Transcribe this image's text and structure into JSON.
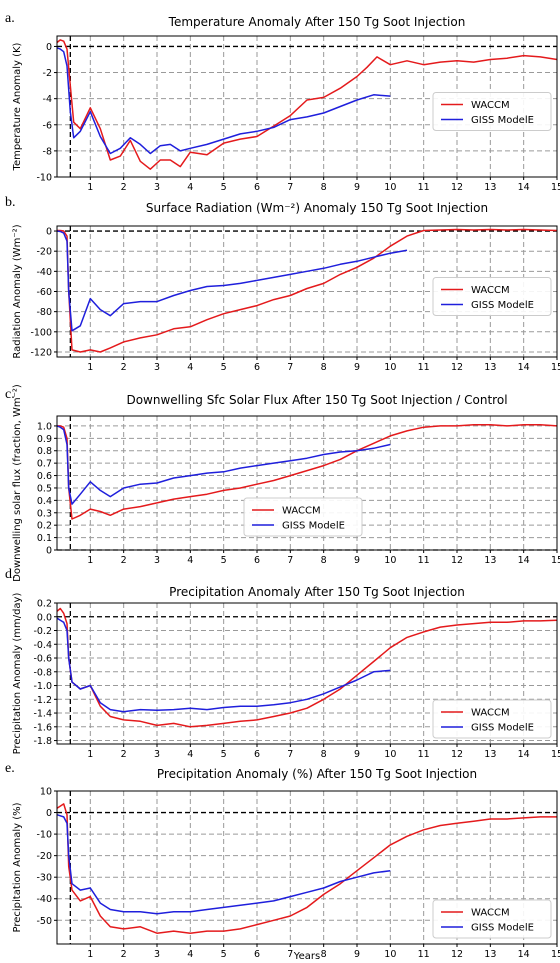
{
  "figure": {
    "xlabel": "Years",
    "x_ticks": [
      1,
      2,
      3,
      4,
      5,
      6,
      7,
      8,
      9,
      10,
      11,
      12,
      13,
      14,
      15
    ]
  },
  "chart_data": [
    {
      "type": "line",
      "panel_label": "a.",
      "title": "Temperature Anomaly After 150 Tg Soot Injection",
      "ylabel": "Temperature Anomaly (K)",
      "xlim": [
        0,
        15
      ],
      "ylim": [
        -10,
        0.8
      ],
      "yticks": [
        0,
        -2,
        -4,
        -6,
        -8,
        -10
      ],
      "ytick_labels": [
        "0",
        "-2",
        "-4",
        "-6",
        "-8",
        "-10"
      ],
      "legend": "center-right",
      "grid": true,
      "series": [
        {
          "name": "WACCM",
          "color": "#e41a1c",
          "x": [
            0,
            0.1,
            0.2,
            0.3,
            0.4,
            0.5,
            0.7,
            1.0,
            1.3,
            1.6,
            1.9,
            2.2,
            2.5,
            2.8,
            3.1,
            3.4,
            3.7,
            4,
            4.5,
            5,
            5.5,
            6,
            6.5,
            7,
            7.5,
            8,
            8.5,
            9,
            9.3,
            9.6,
            10,
            10.5,
            11,
            11.5,
            12,
            12.5,
            13,
            13.5,
            14,
            14.5,
            15
          ],
          "y": [
            0.3,
            0.5,
            0.4,
            -0.2,
            -3,
            -5.8,
            -6.3,
            -4.7,
            -6.3,
            -8.7,
            -8.4,
            -7.2,
            -8.8,
            -9.4,
            -8.7,
            -8.7,
            -9.2,
            -8.1,
            -8.3,
            -7.4,
            -7.1,
            -6.9,
            -6.1,
            -5.3,
            -4.1,
            -3.9,
            -3.2,
            -2.3,
            -1.6,
            -0.8,
            -1.4,
            -1.1,
            -1.4,
            -1.2,
            -1.1,
            -1.2,
            -1.0,
            -0.9,
            -0.7,
            -0.8,
            -1.0
          ]
        },
        {
          "name": "GISS ModelE",
          "color": "#1f1fdc",
          "x": [
            0,
            0.1,
            0.2,
            0.3,
            0.4,
            0.5,
            0.7,
            1.0,
            1.3,
            1.6,
            1.9,
            2.2,
            2.5,
            2.8,
            3.1,
            3.4,
            3.7,
            4,
            4.5,
            5,
            5.5,
            6,
            6.5,
            7,
            7.5,
            8,
            8.5,
            9,
            9.5,
            10
          ],
          "y": [
            -0.1,
            -0.2,
            -0.4,
            -1.5,
            -5,
            -7,
            -6.5,
            -5,
            -6.9,
            -8.2,
            -7.8,
            -7.0,
            -7.5,
            -8.2,
            -7.6,
            -7.5,
            -8.0,
            -7.8,
            -7.5,
            -7.1,
            -6.7,
            -6.5,
            -6.2,
            -5.6,
            -5.4,
            -5.1,
            -4.6,
            -4.1,
            -3.7,
            -3.8
          ]
        }
      ]
    },
    {
      "type": "line",
      "panel_label": "b.",
      "title": "Surface Radiation (Wm⁻²) Anomaly 150 Tg Soot Injection",
      "ylabel": "Radiation Anomaly (Wm⁻²)",
      "xlim": [
        0,
        15
      ],
      "ylim": [
        -125,
        5
      ],
      "yticks": [
        0,
        -20,
        -40,
        -60,
        -80,
        -100,
        -120
      ],
      "ytick_labels": [
        "0",
        "-20",
        "-40",
        "-60",
        "-80",
        "-100",
        "-120"
      ],
      "legend": "center-right",
      "grid": true,
      "series": [
        {
          "name": "WACCM",
          "color": "#e41a1c",
          "x": [
            0,
            0.1,
            0.2,
            0.3,
            0.35,
            0.45,
            0.7,
            1.0,
            1.3,
            1.6,
            2,
            2.5,
            3,
            3.5,
            4,
            4.5,
            5,
            5.5,
            6,
            6.5,
            7,
            7.5,
            8,
            8.5,
            9,
            9.5,
            10,
            10.5,
            11,
            11.5,
            12,
            12.5,
            13,
            13.5,
            14,
            14.5,
            15
          ],
          "y": [
            0.5,
            0.5,
            0,
            -5,
            -60,
            -118,
            -120,
            -118,
            -120,
            -116,
            -110,
            -106,
            -103,
            -97,
            -95,
            -88,
            -82,
            -78,
            -74,
            -68,
            -64,
            -57,
            -52,
            -43,
            -36,
            -27,
            -15,
            -5,
            0.5,
            1,
            1.5,
            1,
            1.5,
            1,
            1.5,
            1,
            0.5
          ]
        },
        {
          "name": "GISS ModelE",
          "color": "#1f1fdc",
          "x": [
            0,
            0.1,
            0.2,
            0.3,
            0.35,
            0.45,
            0.7,
            1.0,
            1.3,
            1.6,
            2,
            2.5,
            3,
            3.5,
            4,
            4.5,
            5,
            5.5,
            6,
            6.5,
            7,
            7.5,
            8,
            8.5,
            9,
            9.5,
            10,
            10.5
          ],
          "y": [
            0,
            -0.5,
            -2,
            -10,
            -60,
            -99,
            -94,
            -67,
            -78,
            -84,
            -72,
            -70,
            -70,
            -64,
            -59,
            -55,
            -54,
            -52,
            -49,
            -46,
            -43,
            -40,
            -37,
            -33,
            -30,
            -26,
            -22,
            -19
          ]
        }
      ]
    },
    {
      "type": "line",
      "panel_label": "c.",
      "title": "Downwelling Sfc Solar Flux After 150 Tg Soot Injection / Control",
      "ylabel": "Downwelling solar flux (fraction, Wm⁻²)",
      "xlim": [
        0,
        15
      ],
      "ylim": [
        0,
        1.08
      ],
      "yticks": [
        0,
        0.1,
        0.2,
        0.3,
        0.4,
        0.5,
        0.6,
        0.7,
        0.8,
        0.9,
        1.0
      ],
      "ytick_labels": [
        "0",
        "0.1",
        "0.2",
        "0.3",
        "0.4",
        "0.5",
        "0.6",
        "0.7",
        "0.8",
        "0.9",
        "1.0"
      ],
      "legend": "lower-center",
      "grid": true,
      "series": [
        {
          "name": "WACCM",
          "color": "#e41a1c",
          "x": [
            0,
            0.1,
            0.2,
            0.3,
            0.35,
            0.45,
            0.7,
            1.0,
            1.3,
            1.6,
            2,
            2.5,
            3,
            3.5,
            4,
            4.5,
            5,
            5.5,
            6,
            6.5,
            7,
            7.5,
            8,
            8.5,
            9,
            9.5,
            10,
            10.5,
            11,
            11.5,
            12,
            12.5,
            13,
            13.5,
            14,
            14.5,
            15
          ],
          "y": [
            1.0,
            1.0,
            0.99,
            0.9,
            0.5,
            0.25,
            0.28,
            0.33,
            0.31,
            0.28,
            0.33,
            0.35,
            0.38,
            0.41,
            0.43,
            0.45,
            0.48,
            0.5,
            0.53,
            0.56,
            0.6,
            0.64,
            0.68,
            0.73,
            0.8,
            0.86,
            0.92,
            0.96,
            0.99,
            1.0,
            1.0,
            1.01,
            1.01,
            1.0,
            1.01,
            1.01,
            1.0
          ]
        },
        {
          "name": "GISS ModelE",
          "color": "#1f1fdc",
          "x": [
            0,
            0.1,
            0.2,
            0.3,
            0.35,
            0.45,
            0.7,
            1.0,
            1.3,
            1.6,
            2,
            2.5,
            3,
            3.5,
            4,
            4.5,
            5,
            5.5,
            6,
            6.5,
            7,
            7.5,
            8,
            8.5,
            9,
            9.5,
            10
          ],
          "y": [
            1.0,
            0.99,
            0.97,
            0.85,
            0.5,
            0.37,
            0.45,
            0.55,
            0.48,
            0.43,
            0.5,
            0.53,
            0.54,
            0.58,
            0.6,
            0.62,
            0.63,
            0.66,
            0.68,
            0.7,
            0.72,
            0.74,
            0.77,
            0.79,
            0.8,
            0.82,
            0.85
          ]
        }
      ]
    },
    {
      "type": "line",
      "panel_label": "d.",
      "title": "Precipitation Anomaly After 150 Tg Soot Injection",
      "ylabel": "Precipitation Anomaly (mm/day)",
      "xlim": [
        0,
        15
      ],
      "ylim": [
        -1.85,
        0.2
      ],
      "yticks": [
        0.2,
        0.0,
        -0.2,
        -0.4,
        -0.6,
        -0.8,
        -1.0,
        -1.2,
        -1.4,
        -1.6,
        -1.8
      ],
      "ytick_labels": [
        "0.2",
        "0.0",
        "-0.2",
        "-0.4",
        "-0.6",
        "-0.8",
        "-1.0",
        "-1.2",
        "-1.4",
        "-1.6",
        "-1.8"
      ],
      "legend": "lower-right",
      "grid": true,
      "series": [
        {
          "name": "WACCM",
          "color": "#e41a1c",
          "x": [
            0,
            0.1,
            0.2,
            0.3,
            0.35,
            0.45,
            0.7,
            1.0,
            1.3,
            1.6,
            2,
            2.5,
            3,
            3.5,
            4,
            4.5,
            5,
            5.5,
            6,
            6.5,
            7,
            7.5,
            8,
            8.5,
            9,
            9.5,
            10,
            10.5,
            11,
            11.5,
            12,
            12.5,
            13,
            13.5,
            14,
            14.5,
            15
          ],
          "y": [
            0.08,
            0.12,
            0.05,
            -0.1,
            -0.6,
            -0.95,
            -1.05,
            -1.0,
            -1.3,
            -1.45,
            -1.5,
            -1.52,
            -1.58,
            -1.55,
            -1.6,
            -1.58,
            -1.55,
            -1.52,
            -1.5,
            -1.45,
            -1.4,
            -1.33,
            -1.2,
            -1.05,
            -0.85,
            -0.65,
            -0.45,
            -0.3,
            -0.22,
            -0.15,
            -0.12,
            -0.1,
            -0.08,
            -0.08,
            -0.06,
            -0.06,
            -0.05
          ]
        },
        {
          "name": "GISS ModelE",
          "color": "#1f1fdc",
          "x": [
            0,
            0.1,
            0.2,
            0.3,
            0.35,
            0.45,
            0.7,
            1.0,
            1.3,
            1.6,
            2,
            2.5,
            3,
            3.5,
            4,
            4.5,
            5,
            5.5,
            6,
            6.5,
            7,
            7.5,
            8,
            8.5,
            9,
            9.5,
            10
          ],
          "y": [
            -0.02,
            -0.05,
            -0.08,
            -0.2,
            -0.6,
            -0.95,
            -1.05,
            -1.0,
            -1.25,
            -1.35,
            -1.38,
            -1.35,
            -1.36,
            -1.35,
            -1.33,
            -1.35,
            -1.32,
            -1.3,
            -1.3,
            -1.28,
            -1.25,
            -1.2,
            -1.12,
            -1.02,
            -0.92,
            -0.8,
            -0.78
          ]
        }
      ]
    },
    {
      "type": "line",
      "panel_label": "e.",
      "title": "Precipitation Anomaly (%) After 150 Tg Soot Injection",
      "ylabel": "Precipitation Anomaly (%)",
      "xlim": [
        0,
        15
      ],
      "ylim": [
        -61,
        10
      ],
      "yticks": [
        10,
        0,
        -10,
        -20,
        -30,
        -40,
        -50
      ],
      "ytick_labels": [
        "10",
        "0",
        "-10",
        "-20",
        "-30",
        "-40",
        "-50"
      ],
      "legend": "lower-right",
      "grid": true,
      "series": [
        {
          "name": "WACCM",
          "color": "#e41a1c",
          "x": [
            0,
            0.1,
            0.2,
            0.3,
            0.35,
            0.45,
            0.7,
            1.0,
            1.3,
            1.6,
            2,
            2.5,
            3,
            3.5,
            4,
            4.5,
            5,
            5.5,
            6,
            6.5,
            7,
            7.5,
            8,
            8.5,
            9,
            9.5,
            10,
            10.5,
            11,
            11.5,
            12,
            12.5,
            13,
            13.5,
            14,
            14.5,
            15
          ],
          "y": [
            2,
            3,
            4,
            -1,
            -25,
            -36,
            -41,
            -39,
            -48,
            -53,
            -54,
            -53,
            -56,
            -55,
            -56,
            -55,
            -55,
            -54,
            -52,
            -50,
            -48,
            -44,
            -38,
            -33,
            -27,
            -21,
            -15,
            -11,
            -8,
            -6,
            -5,
            -4,
            -3,
            -3,
            -2.5,
            -2,
            -2
          ]
        },
        {
          "name": "GISS ModelE",
          "color": "#1f1fdc",
          "x": [
            0,
            0.1,
            0.2,
            0.3,
            0.35,
            0.45,
            0.7,
            1.0,
            1.3,
            1.6,
            2,
            2.5,
            3,
            3.5,
            4,
            4.5,
            5,
            5.5,
            6,
            6.5,
            7,
            7.5,
            8,
            8.5,
            9,
            9.5,
            10
          ],
          "y": [
            -1,
            -1.5,
            -2,
            -5,
            -20,
            -33,
            -36,
            -35,
            -42,
            -45,
            -46,
            -46,
            -47,
            -46,
            -46,
            -45,
            -44,
            -43,
            -42,
            -41,
            -39,
            -37,
            -35,
            -32,
            -30,
            -28,
            -27
          ]
        }
      ]
    }
  ]
}
